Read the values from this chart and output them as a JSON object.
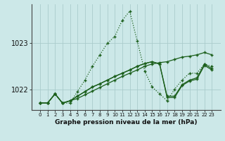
{
  "title": "Graphe pression niveau de la mer (hPa)",
  "bg_color": "#cce8e8",
  "grid_color": "#aacccc",
  "line_color": "#1a5e1a",
  "x_labels": [
    "0",
    "1",
    "2",
    "3",
    "4",
    "5",
    "6",
    "7",
    "8",
    "9",
    "10",
    "11",
    "12",
    "13",
    "14",
    "15",
    "16",
    "17",
    "18",
    "19",
    "20",
    "21",
    "22",
    "23"
  ],
  "yticks": [
    1022,
    1023
  ],
  "ylim": [
    1021.55,
    1023.85
  ],
  "series": [
    [
      1021.7,
      1021.7,
      1021.9,
      1021.7,
      1021.7,
      1021.95,
      1022.2,
      1022.5,
      1022.75,
      1023.0,
      1023.15,
      1023.5,
      1023.7,
      1023.05,
      1022.4,
      1022.05,
      1021.9,
      1021.75,
      1022.0,
      1022.2,
      1022.35,
      1022.35,
      1022.55,
      1022.5
    ],
    [
      1021.7,
      1021.7,
      1021.9,
      1021.7,
      1021.75,
      1021.8,
      1021.88,
      1021.96,
      1022.04,
      1022.12,
      1022.2,
      1022.28,
      1022.35,
      1022.42,
      1022.5,
      1022.55,
      1022.58,
      1022.6,
      1022.65,
      1022.7,
      1022.72,
      1022.75,
      1022.8,
      1022.75
    ],
    [
      1021.7,
      1021.7,
      1021.9,
      1021.7,
      1021.75,
      1021.85,
      1021.95,
      1022.05,
      1022.12,
      1022.2,
      1022.28,
      1022.35,
      1022.42,
      1022.5,
      1022.56,
      1022.6,
      1022.55,
      1021.85,
      1021.85,
      1022.1,
      1022.2,
      1022.25,
      1022.55,
      1022.45
    ],
    [
      1021.7,
      1021.7,
      1021.9,
      1021.7,
      1021.75,
      1021.85,
      1021.95,
      1022.05,
      1022.12,
      1022.2,
      1022.28,
      1022.35,
      1022.42,
      1022.5,
      1022.56,
      1022.6,
      1022.55,
      1021.82,
      1021.82,
      1022.08,
      1022.18,
      1022.22,
      1022.52,
      1022.42
    ]
  ]
}
